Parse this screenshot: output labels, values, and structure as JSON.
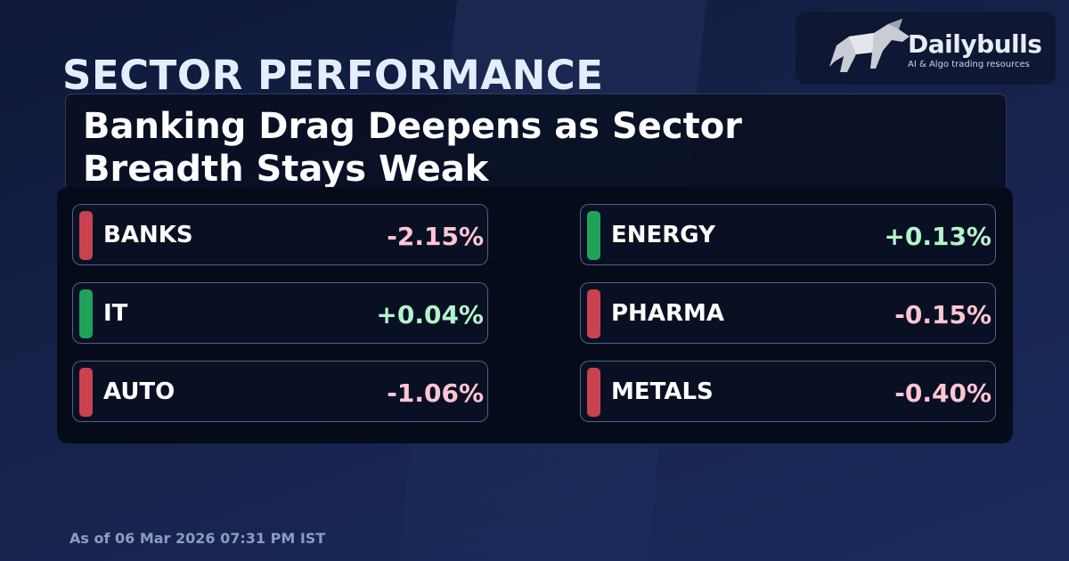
{
  "header": {
    "title": "SECTOR PERFORMANCE",
    "headline": "Banking Drag Deepens as Sector Breadth Stays Weak"
  },
  "logo": {
    "name": "Dailybulls",
    "tagline": "AI & Algo trading resources"
  },
  "sectors": [
    {
      "name": "BANKS",
      "change": "-2.15%",
      "color": "#c9424f",
      "value_color": "#ffc6d2"
    },
    {
      "name": "ENERGY",
      "change": "+0.13%",
      "color": "#1fa35a",
      "value_color": "#b4f3cb"
    },
    {
      "name": "IT",
      "change": "+0.04%",
      "color": "#1fa35a",
      "value_color": "#b4f3cb"
    },
    {
      "name": "PHARMA",
      "change": "-0.15%",
      "color": "#c9424f",
      "value_color": "#ffc6d2"
    },
    {
      "name": "AUTO",
      "change": "-1.06%",
      "color": "#c9424f",
      "value_color": "#ffc6d2"
    },
    {
      "name": "METALS",
      "change": "-0.40%",
      "color": "#c9424f",
      "value_color": "#ffc6d2"
    }
  ],
  "footer": {
    "timestamp": "As of 06 Mar 2026 07:31 PM IST"
  }
}
